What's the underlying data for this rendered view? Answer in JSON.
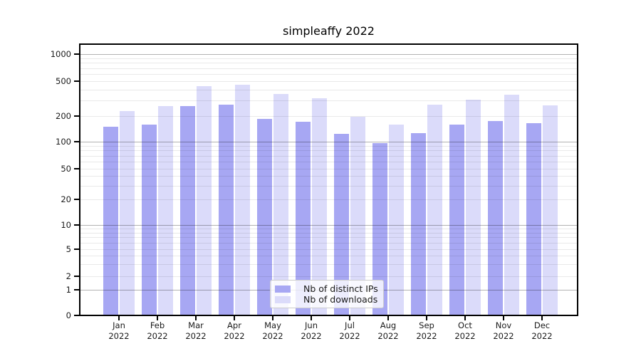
{
  "chart_data": {
    "type": "bar",
    "title": "simpleaffy 2022",
    "categories": [
      "Jan",
      "Feb",
      "Mar",
      "Apr",
      "May",
      "Jun",
      "Jul",
      "Aug",
      "Sep",
      "Oct",
      "Nov",
      "Dec"
    ],
    "x_year_label": "2022",
    "series": [
      {
        "name": "Nb of distinct IPs",
        "color": "#a7a7f3",
        "values": [
          150,
          160,
          260,
          270,
          185,
          170,
          123,
          96,
          125,
          160,
          175,
          165
        ]
      },
      {
        "name": "Nb of downloads",
        "color": "#dbdbfa",
        "values": [
          230,
          260,
          440,
          455,
          355,
          320,
          195,
          158,
          270,
          305,
          350,
          265
        ]
      }
    ],
    "y_axis": {
      "scale": "symlog",
      "ticks": [
        0,
        1,
        2,
        5,
        10,
        20,
        50,
        100,
        200,
        500,
        1000
      ],
      "ylim": [
        0,
        1400
      ]
    },
    "grid": "both",
    "legend_position": "lower-center"
  },
  "colors": {
    "background": "#ffffff",
    "spine": "#000000",
    "major_grid": "#b3b3b3",
    "minor_grid": "#e9e9e9",
    "text": "#1a1a1a"
  }
}
